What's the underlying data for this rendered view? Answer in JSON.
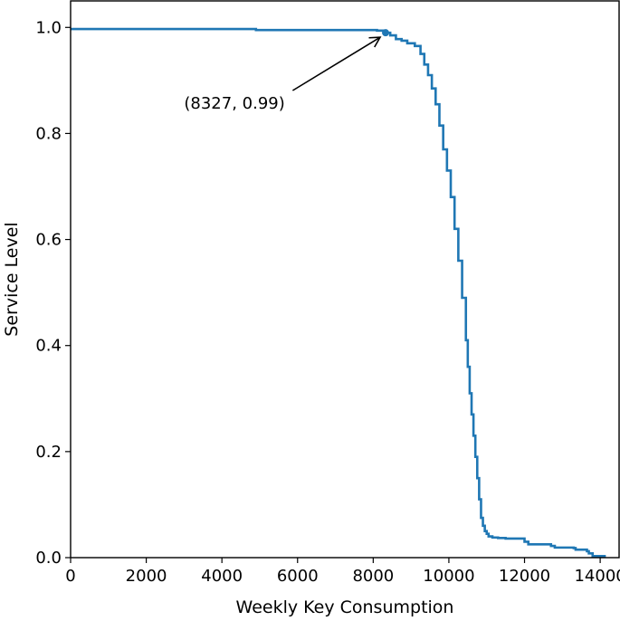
{
  "chart_data": {
    "type": "line",
    "title": "",
    "xlabel": "Weekly Key Consumption",
    "ylabel": "Service Level",
    "xlim": [
      0,
      14500
    ],
    "ylim": [
      0.0,
      1.05
    ],
    "x_ticks": [
      0,
      2000,
      4000,
      6000,
      8000,
      10000,
      12000,
      14000
    ],
    "x_tick_labels": [
      "0",
      "2000",
      "4000",
      "6000",
      "8000",
      "10000",
      "12000",
      "14000"
    ],
    "y_ticks": [
      0.0,
      0.2,
      0.4,
      0.6,
      0.8,
      1.0
    ],
    "y_tick_labels": [
      "0.0",
      "0.2",
      "0.4",
      "0.6",
      "0.8",
      "1.0"
    ],
    "grid": false,
    "legend": "none",
    "line_color": "#1f77b4",
    "series": [
      {
        "step": true,
        "x": [
          0,
          4850,
          4900,
          8100,
          8327,
          8450,
          8600,
          8750,
          8900,
          9100,
          9250,
          9350,
          9450,
          9550,
          9650,
          9750,
          9850,
          9950,
          10050,
          10150,
          10250,
          10350,
          10450,
          10500,
          10550,
          10600,
          10650,
          10700,
          10750,
          10800,
          10850,
          10900,
          10950,
          11000,
          11050,
          11150,
          11300,
          11500,
          12000,
          12100,
          12700,
          12800,
          13300,
          13350,
          13650,
          13700,
          13800,
          14150
        ],
        "y": [
          0.997,
          0.997,
          0.995,
          0.994,
          0.99,
          0.985,
          0.978,
          0.975,
          0.97,
          0.965,
          0.95,
          0.93,
          0.91,
          0.885,
          0.855,
          0.815,
          0.77,
          0.73,
          0.68,
          0.62,
          0.56,
          0.49,
          0.41,
          0.36,
          0.31,
          0.27,
          0.23,
          0.19,
          0.15,
          0.11,
          0.075,
          0.06,
          0.05,
          0.045,
          0.04,
          0.038,
          0.037,
          0.036,
          0.03,
          0.025,
          0.022,
          0.019,
          0.018,
          0.015,
          0.012,
          0.008,
          0.003,
          0.003
        ]
      }
    ],
    "annotation": {
      "text": "(8327, 0.99)",
      "point": [
        8327,
        0.99
      ],
      "text_position": [
        3000,
        0.84
      ]
    }
  }
}
